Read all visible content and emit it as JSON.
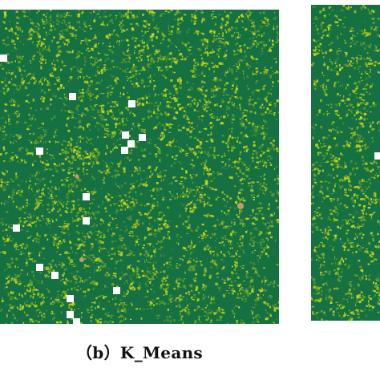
{
  "caption": "（b）K_Means",
  "colors": {
    "background_class": "#157142",
    "vegetation_class": "#c8d619",
    "mid_class": "#6a9f2a",
    "bare_class": "#c79a6a",
    "sample_marker": "#ffffff",
    "page_background": "#ffffff"
  }
}
